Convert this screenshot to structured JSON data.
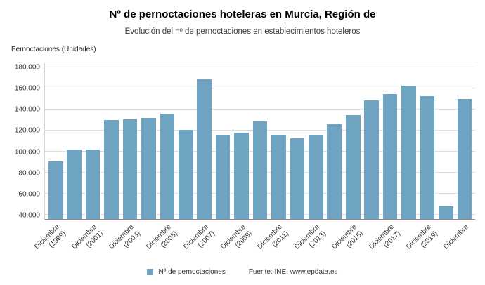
{
  "chart_data": {
    "type": "bar",
    "title": "Nº de pernoctaciones hoteleras en Murcia, Región de",
    "subtitle": "Evolución del nº de pernoctaciones en establecimientos hoteleros",
    "ylabel": "Pernoctaciones (Unidades)",
    "legend_label": "Nº de pernoctaciones",
    "source": "Fuente: INE, www.epdata.es",
    "bar_color": "#6ea3c1",
    "grid": true,
    "legend_position": "bottom-center",
    "ymin": 36000,
    "ymax": 184000,
    "yticks": [
      {
        "value": 40000,
        "label": "40.000"
      },
      {
        "value": 60000,
        "label": "60.000"
      },
      {
        "value": 80000,
        "label": "80.000"
      },
      {
        "value": 100000,
        "label": "100.000"
      },
      {
        "value": 120000,
        "label": "120.000"
      },
      {
        "value": 140000,
        "label": "140.000"
      },
      {
        "value": 160000,
        "label": "160.000"
      },
      {
        "value": 180000,
        "label": "180.000"
      }
    ],
    "categories": [
      {
        "year": 1999,
        "line1": "Diciembre",
        "line2": "(1999)",
        "show_label": true
      },
      {
        "year": 2000,
        "line1": "",
        "line2": "",
        "show_label": false
      },
      {
        "year": 2001,
        "line1": "Diciembre",
        "line2": "(2001)",
        "show_label": true
      },
      {
        "year": 2002,
        "line1": "",
        "line2": "",
        "show_label": false
      },
      {
        "year": 2003,
        "line1": "Diciembre",
        "line2": "(2003)",
        "show_label": true
      },
      {
        "year": 2004,
        "line1": "",
        "line2": "",
        "show_label": false
      },
      {
        "year": 2005,
        "line1": "Diciembre",
        "line2": "(2005)",
        "show_label": true
      },
      {
        "year": 2006,
        "line1": "",
        "line2": "",
        "show_label": false
      },
      {
        "year": 2007,
        "line1": "Diciembre",
        "line2": "(2007)",
        "show_label": true
      },
      {
        "year": 2008,
        "line1": "",
        "line2": "",
        "show_label": false
      },
      {
        "year": 2009,
        "line1": "Diciembre",
        "line2": "(2009)",
        "show_label": true
      },
      {
        "year": 2010,
        "line1": "",
        "line2": "",
        "show_label": false
      },
      {
        "year": 2011,
        "line1": "Diciembre",
        "line2": "(2011)",
        "show_label": true
      },
      {
        "year": 2012,
        "line1": "",
        "line2": "",
        "show_label": false
      },
      {
        "year": 2013,
        "line1": "Diciembre",
        "line2": "(2013)",
        "show_label": true
      },
      {
        "year": 2014,
        "line1": "",
        "line2": "",
        "show_label": false
      },
      {
        "year": 2015,
        "line1": "Diciembre",
        "line2": "(2015)",
        "show_label": true
      },
      {
        "year": 2016,
        "line1": "",
        "line2": "",
        "show_label": false
      },
      {
        "year": 2017,
        "line1": "Diciembre",
        "line2": "(2017)",
        "show_label": true
      },
      {
        "year": 2018,
        "line1": "",
        "line2": "",
        "show_label": false
      },
      {
        "year": 2019,
        "line1": "Diciembre",
        "line2": "(2019)",
        "show_label": true
      },
      {
        "year": 2020,
        "line1": "",
        "line2": "",
        "show_label": false
      },
      {
        "year": 2021,
        "line1": "Diciembre",
        "line2": "",
        "show_label": true
      }
    ],
    "values": [
      91000,
      102000,
      102000,
      130000,
      131000,
      132000,
      136000,
      121000,
      169000,
      116000,
      118000,
      129000,
      116000,
      113000,
      116000,
      126000,
      135000,
      149000,
      155000,
      163000,
      153000,
      48000,
      150000
    ]
  }
}
